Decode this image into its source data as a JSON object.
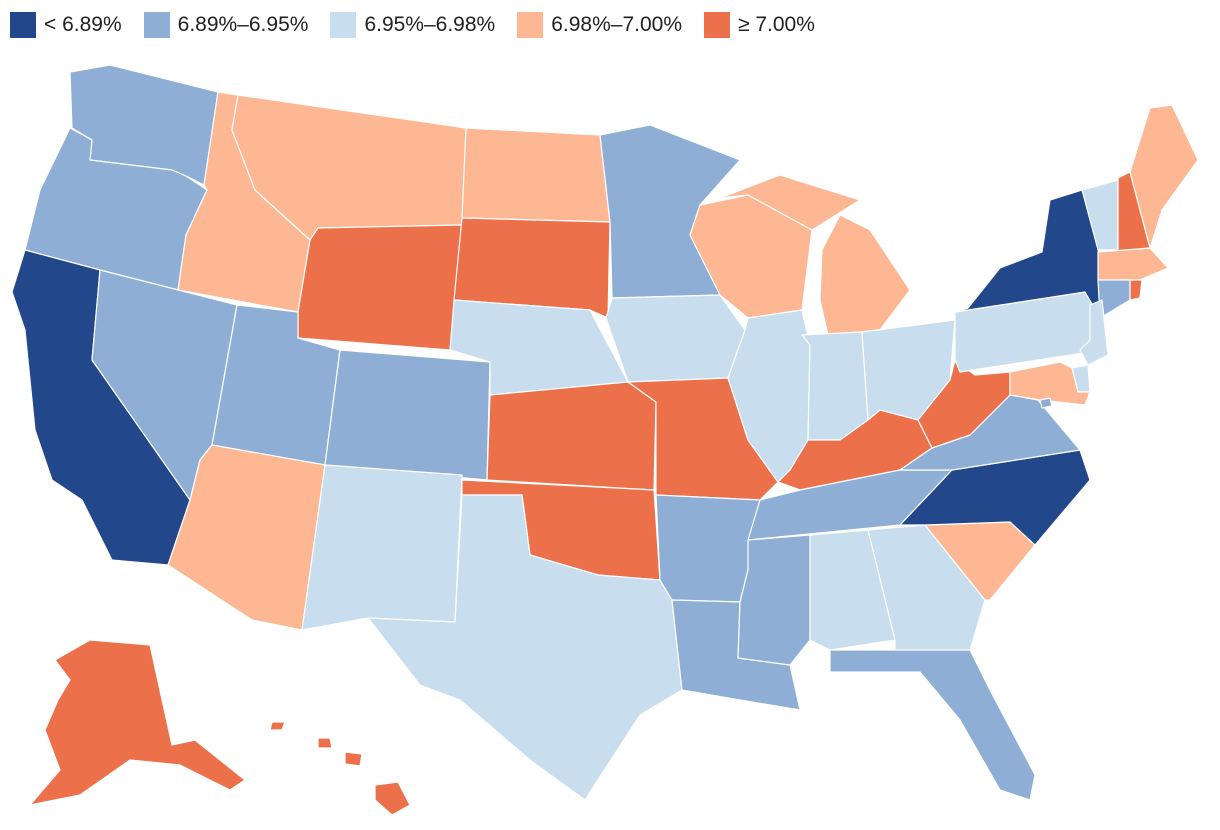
{
  "legend": {
    "items": [
      {
        "label": "< 6.89%",
        "color": "#22478b"
      },
      {
        "label": "6.89%–6.95%",
        "color": "#8eaed6"
      },
      {
        "label": "6.95%–6.98%",
        "color": "#c8ddee"
      },
      {
        "label": "6.98%–7.00%",
        "color": "#fdb793"
      },
      {
        "label": "≥ 7.00%",
        "color": "#ec714a"
      }
    ]
  },
  "map": {
    "states": [
      {
        "id": "WA",
        "bin": 1
      },
      {
        "id": "OR",
        "bin": 1
      },
      {
        "id": "CA",
        "bin": 0
      },
      {
        "id": "NV",
        "bin": 1
      },
      {
        "id": "ID",
        "bin": 3
      },
      {
        "id": "MT",
        "bin": 3
      },
      {
        "id": "WY",
        "bin": 4
      },
      {
        "id": "UT",
        "bin": 1
      },
      {
        "id": "AZ",
        "bin": 3
      },
      {
        "id": "CO",
        "bin": 1
      },
      {
        "id": "NM",
        "bin": 2
      },
      {
        "id": "ND",
        "bin": 3
      },
      {
        "id": "SD",
        "bin": 4
      },
      {
        "id": "NE",
        "bin": 2
      },
      {
        "id": "KS",
        "bin": 4
      },
      {
        "id": "OK",
        "bin": 4
      },
      {
        "id": "TX",
        "bin": 2
      },
      {
        "id": "MN",
        "bin": 1
      },
      {
        "id": "IA",
        "bin": 2
      },
      {
        "id": "MO",
        "bin": 4
      },
      {
        "id": "AR",
        "bin": 1
      },
      {
        "id": "LA",
        "bin": 1
      },
      {
        "id": "WI",
        "bin": 3
      },
      {
        "id": "MI",
        "bin": 3
      },
      {
        "id": "IL",
        "bin": 2
      },
      {
        "id": "IN",
        "bin": 2
      },
      {
        "id": "OH",
        "bin": 2
      },
      {
        "id": "KY",
        "bin": 4
      },
      {
        "id": "TN",
        "bin": 1
      },
      {
        "id": "MS",
        "bin": 1
      },
      {
        "id": "AL",
        "bin": 2
      },
      {
        "id": "GA",
        "bin": 2
      },
      {
        "id": "FL",
        "bin": 1
      },
      {
        "id": "SC",
        "bin": 3
      },
      {
        "id": "NC",
        "bin": 0
      },
      {
        "id": "VA",
        "bin": 1
      },
      {
        "id": "WV",
        "bin": 4
      },
      {
        "id": "PA",
        "bin": 2
      },
      {
        "id": "NY",
        "bin": 0
      },
      {
        "id": "VT",
        "bin": 2
      },
      {
        "id": "NH",
        "bin": 4
      },
      {
        "id": "ME",
        "bin": 3
      },
      {
        "id": "MA",
        "bin": 3
      },
      {
        "id": "CT",
        "bin": 1
      },
      {
        "id": "RI",
        "bin": 4
      },
      {
        "id": "NJ",
        "bin": 2
      },
      {
        "id": "DE",
        "bin": 2
      },
      {
        "id": "MD",
        "bin": 3
      },
      {
        "id": "DC",
        "bin": 1
      },
      {
        "id": "AK",
        "bin": 4
      },
      {
        "id": "HI",
        "bin": 4
      }
    ]
  }
}
